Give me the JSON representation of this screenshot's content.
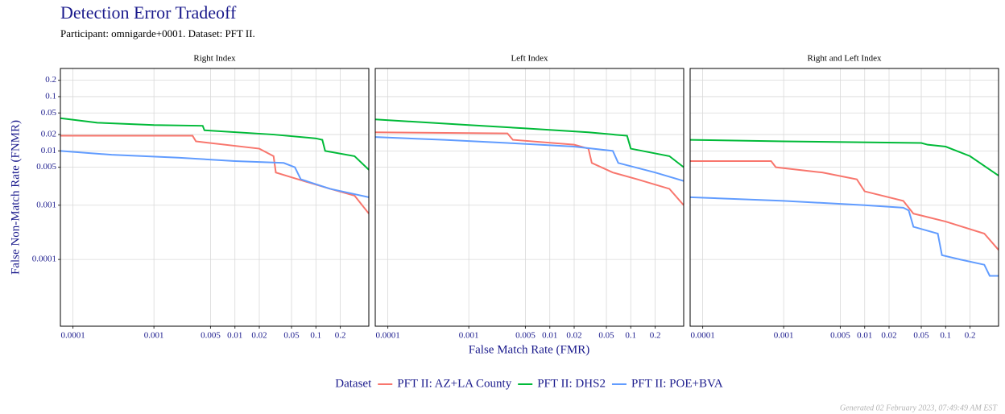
{
  "title": "Detection Error Tradeoff",
  "subtitle": "Participant: omnigarde+0001. Dataset: PFT II.",
  "xlabel": "False Match Rate (FMR)",
  "ylabel": "False Non-Match Rate (FNMR)",
  "legend_title": "Dataset",
  "footer": "Generated 02 February 2023, 07:49:49 AM EST",
  "chart_data": [
    {
      "type": "line",
      "panel_title": "Right Index",
      "log_x": true,
      "log_y": true,
      "grid": true,
      "show_ytick_labels": true,
      "xlim": [
        7e-05,
        0.45
      ],
      "ylim": [
        5.9e-06,
        0.33
      ],
      "xticks": [
        0.0001,
        0.001,
        0.005,
        0.01,
        0.02,
        0.05,
        0.1,
        0.2
      ],
      "yticks": [
        0.0001,
        0.001,
        0.005,
        0.01,
        0.02,
        0.05,
        0.1,
        0.2
      ],
      "series": [
        {
          "name": "PFT II: AZ+LA County",
          "color": "#F8766D",
          "x": [
            7e-05,
            0.003,
            0.0033,
            0.02,
            0.03,
            0.032,
            0.06,
            0.15,
            0.3,
            0.45
          ],
          "values": [
            0.019,
            0.019,
            0.015,
            0.011,
            0.008,
            0.004,
            0.003,
            0.002,
            0.0015,
            0.0007
          ]
        },
        {
          "name": "PFT II: DHS2",
          "color": "#00BA38",
          "x": [
            7e-05,
            0.0002,
            0.001,
            0.004,
            0.0042,
            0.03,
            0.1,
            0.12,
            0.13,
            0.3,
            0.45
          ],
          "values": [
            0.04,
            0.033,
            0.03,
            0.029,
            0.024,
            0.02,
            0.017,
            0.016,
            0.01,
            0.008,
            0.0045
          ]
        },
        {
          "name": "PFT II: POE+BVA",
          "color": "#619CFF",
          "x": [
            7e-05,
            0.0003,
            0.002,
            0.01,
            0.04,
            0.055,
            0.065,
            0.15,
            0.45
          ],
          "values": [
            0.01,
            0.0085,
            0.0075,
            0.0065,
            0.006,
            0.005,
            0.003,
            0.002,
            0.0014
          ]
        }
      ]
    },
    {
      "type": "line",
      "panel_title": "Left Index",
      "log_x": true,
      "log_y": true,
      "grid": true,
      "show_ytick_labels": false,
      "xlim": [
        7e-05,
        0.45
      ],
      "ylim": [
        5.9e-06,
        0.33
      ],
      "xticks": [
        0.0001,
        0.001,
        0.005,
        0.01,
        0.02,
        0.05,
        0.1,
        0.2
      ],
      "yticks": [
        0.0001,
        0.001,
        0.005,
        0.01,
        0.02,
        0.05,
        0.1,
        0.2
      ],
      "series": [
        {
          "name": "PFT II: AZ+LA County",
          "color": "#F8766D",
          "x": [
            7e-05,
            0.003,
            0.0035,
            0.02,
            0.03,
            0.033,
            0.06,
            0.12,
            0.3,
            0.45
          ],
          "values": [
            0.022,
            0.021,
            0.016,
            0.013,
            0.011,
            0.006,
            0.004,
            0.003,
            0.002,
            0.001
          ]
        },
        {
          "name": "PFT II: DHS2",
          "color": "#00BA38",
          "x": [
            7e-05,
            0.001,
            0.005,
            0.03,
            0.09,
            0.1,
            0.3,
            0.45
          ],
          "values": [
            0.038,
            0.03,
            0.026,
            0.022,
            0.019,
            0.011,
            0.008,
            0.005
          ]
        },
        {
          "name": "PFT II: POE+BVA",
          "color": "#619CFF",
          "x": [
            7e-05,
            0.0005,
            0.003,
            0.02,
            0.06,
            0.07,
            0.2,
            0.45
          ],
          "values": [
            0.018,
            0.016,
            0.014,
            0.012,
            0.01,
            0.006,
            0.004,
            0.0028
          ]
        }
      ]
    },
    {
      "type": "line",
      "panel_title": "Right and Left Index",
      "log_x": true,
      "log_y": true,
      "grid": true,
      "show_ytick_labels": false,
      "xlim": [
        7e-05,
        0.45
      ],
      "ylim": [
        5.9e-06,
        0.33
      ],
      "xticks": [
        0.0001,
        0.001,
        0.005,
        0.01,
        0.02,
        0.05,
        0.1,
        0.2
      ],
      "yticks": [
        0.0001,
        0.001,
        0.005,
        0.01,
        0.02,
        0.05,
        0.1,
        0.2
      ],
      "series": [
        {
          "name": "PFT II: AZ+LA County",
          "color": "#F8766D",
          "x": [
            7e-05,
            0.0007,
            0.0008,
            0.003,
            0.008,
            0.01,
            0.03,
            0.04,
            0.1,
            0.3,
            0.45
          ],
          "values": [
            0.0065,
            0.0065,
            0.005,
            0.004,
            0.003,
            0.0018,
            0.0012,
            0.0007,
            0.0005,
            0.0003,
            0.00015
          ]
        },
        {
          "name": "PFT II: DHS2",
          "color": "#00BA38",
          "x": [
            7e-05,
            0.001,
            0.05,
            0.06,
            0.1,
            0.2,
            0.45
          ],
          "values": [
            0.016,
            0.015,
            0.014,
            0.013,
            0.012,
            0.008,
            0.0035
          ]
        },
        {
          "name": "PFT II: POE+BVA",
          "color": "#619CFF",
          "x": [
            7e-05,
            0.001,
            0.01,
            0.03,
            0.035,
            0.04,
            0.08,
            0.09,
            0.15,
            0.3,
            0.35,
            0.45
          ],
          "values": [
            0.0014,
            0.0012,
            0.001,
            0.0009,
            0.0008,
            0.0004,
            0.0003,
            0.00012,
            0.0001,
            8e-05,
            5e-05,
            5e-05
          ]
        }
      ]
    }
  ]
}
